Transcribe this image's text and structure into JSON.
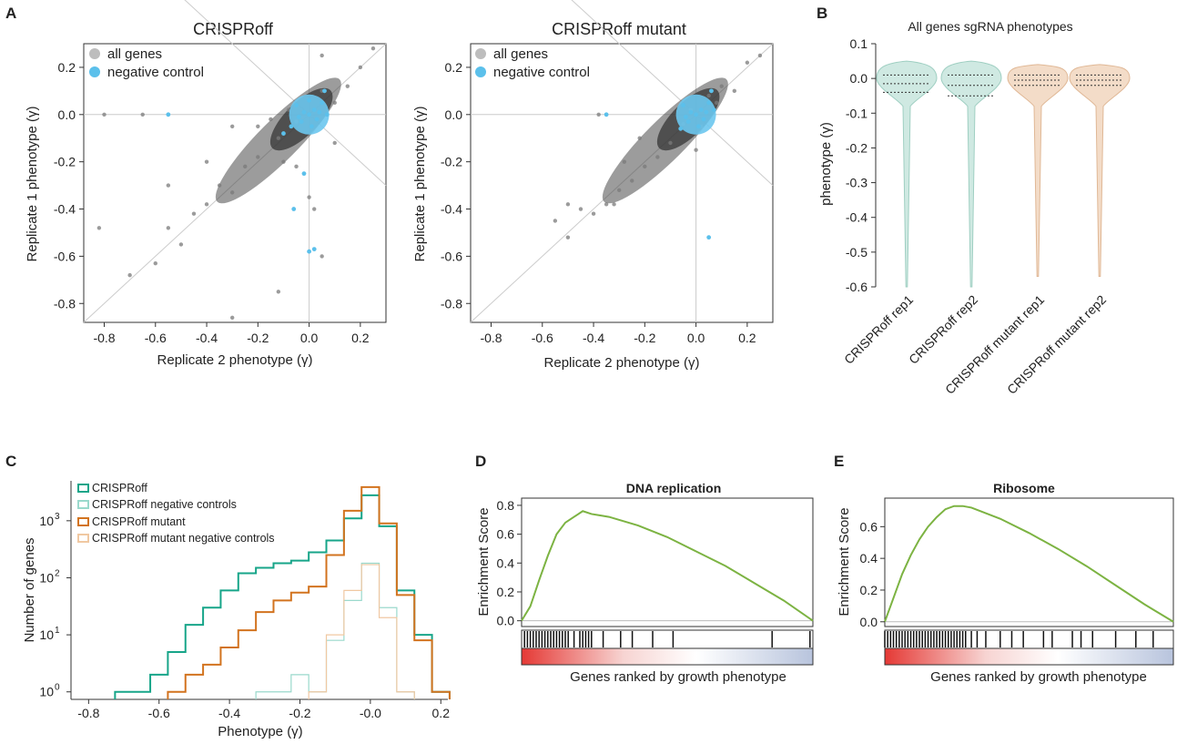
{
  "panels": {
    "A": "A",
    "B": "B",
    "C": "C",
    "D": "D",
    "E": "E"
  },
  "chart_data": [
    {
      "id": "A1",
      "type": "scatter",
      "title": "CRISPRoff",
      "xlabel": "Replicate 2 phenotype (γ)",
      "ylabel": "Replicate 1 phenotype (γ)",
      "xlim": [
        -0.88,
        0.3
      ],
      "ylim": [
        -0.88,
        0.3
      ],
      "xticks": [
        "-0.8",
        "-0.6",
        "-0.4",
        "-0.2",
        "0.0",
        "0.2"
      ],
      "yticks": [
        "0.2",
        "0.0",
        "-0.2",
        "-0.4",
        "-0.6",
        "-0.8"
      ],
      "legend": [
        "all genes",
        "negative control"
      ],
      "legend_position": "top-left",
      "colors": {
        "all_genes": "#3a3a3a",
        "negative_control": "#5bc0eb"
      },
      "series": [
        {
          "name": "all genes",
          "points": [
            [
              -0.05,
              -0.03
            ],
            [
              -0.12,
              -0.1
            ],
            [
              -0.2,
              -0.18
            ],
            [
              -0.25,
              -0.22
            ],
            [
              -0.3,
              -0.33
            ],
            [
              -0.35,
              -0.3
            ],
            [
              -0.4,
              -0.38
            ],
            [
              -0.45,
              -0.42
            ],
            [
              -0.5,
              -0.55
            ],
            [
              -0.55,
              -0.48
            ],
            [
              -0.15,
              -0.02
            ],
            [
              -0.1,
              -0.2
            ],
            [
              -0.08,
              0.02
            ],
            [
              0.05,
              0.1
            ],
            [
              0.1,
              0.05
            ],
            [
              0.15,
              0.12
            ],
            [
              0.2,
              0.2
            ],
            [
              0.25,
              0.28
            ],
            [
              -0.6,
              -0.63
            ],
            [
              -0.7,
              -0.68
            ],
            [
              -0.82,
              -0.48
            ],
            [
              -0.55,
              -0.3
            ],
            [
              -0.3,
              -0.05
            ],
            [
              -0.4,
              -0.2
            ],
            [
              0.02,
              -0.4
            ],
            [
              0.05,
              -0.6
            ],
            [
              -0.12,
              -0.75
            ],
            [
              -0.3,
              -0.86
            ],
            [
              -0.8,
              0.0
            ],
            [
              -0.65,
              0.0
            ],
            [
              0.0,
              -0.35
            ],
            [
              0.05,
              0.25
            ],
            [
              -0.2,
              -0.05
            ],
            [
              -0.05,
              -0.22
            ],
            [
              0.1,
              -0.12
            ]
          ]
        },
        {
          "name": "negative control",
          "points": [
            [
              0.0,
              0.0
            ],
            [
              0.02,
              0.02
            ],
            [
              -0.02,
              0.01
            ],
            [
              0.03,
              -0.02
            ],
            [
              -0.03,
              -0.03
            ],
            [
              0.05,
              0.05
            ],
            [
              -0.05,
              0.04
            ],
            [
              0.01,
              -0.05
            ],
            [
              0.04,
              0.01
            ],
            [
              -0.04,
              -0.01
            ],
            [
              -0.55,
              0.0
            ],
            [
              0.0,
              -0.58
            ],
            [
              0.02,
              -0.57
            ],
            [
              -0.02,
              -0.25
            ],
            [
              -0.06,
              -0.4
            ],
            [
              0.06,
              0.1
            ],
            [
              -0.1,
              -0.08
            ],
            [
              0.07,
              0.0
            ],
            [
              -0.07,
              -0.05
            ],
            [
              0.0,
              0.06
            ]
          ]
        }
      ]
    },
    {
      "id": "A2",
      "type": "scatter",
      "title": "CRISPRoff mutant",
      "xlabel": "Replicate 2 phenotype (γ)",
      "ylabel": "Replicate 1 phenotype (γ)",
      "xlim": [
        -0.88,
        0.3
      ],
      "ylim": [
        -0.88,
        0.3
      ],
      "xticks": [
        "-0.8",
        "-0.6",
        "-0.4",
        "-0.2",
        "0.0",
        "0.2"
      ],
      "yticks": [
        "0.2",
        "0.0",
        "-0.2",
        "-0.4",
        "-0.6",
        "-0.8"
      ],
      "legend": [
        "all genes",
        "negative control"
      ],
      "legend_position": "top-left",
      "series": [
        {
          "name": "all genes",
          "points": [
            [
              -0.05,
              -0.04
            ],
            [
              -0.1,
              -0.12
            ],
            [
              -0.15,
              -0.18
            ],
            [
              -0.2,
              -0.22
            ],
            [
              -0.25,
              -0.28
            ],
            [
              -0.3,
              -0.32
            ],
            [
              -0.35,
              -0.38
            ],
            [
              -0.4,
              -0.42
            ],
            [
              -0.45,
              -0.4
            ],
            [
              -0.5,
              -0.38
            ],
            [
              -0.02,
              0.02
            ],
            [
              0.05,
              0.08
            ],
            [
              0.08,
              0.05
            ],
            [
              0.1,
              0.12
            ],
            [
              0.15,
              0.1
            ],
            [
              0.2,
              0.22
            ],
            [
              -0.32,
              -0.38
            ],
            [
              -0.28,
              -0.2
            ],
            [
              -0.38,
              0.0
            ],
            [
              -0.22,
              -0.1
            ],
            [
              0.0,
              -0.15
            ],
            [
              0.02,
              -0.05
            ],
            [
              0.25,
              0.25
            ],
            [
              -0.55,
              -0.45
            ],
            [
              -0.5,
              -0.52
            ]
          ]
        },
        {
          "name": "negative control",
          "points": [
            [
              0.0,
              0.0
            ],
            [
              0.02,
              0.02
            ],
            [
              -0.02,
              0.01
            ],
            [
              0.03,
              -0.02
            ],
            [
              -0.03,
              -0.03
            ],
            [
              0.05,
              0.05
            ],
            [
              -0.05,
              0.04
            ],
            [
              0.01,
              -0.05
            ],
            [
              0.04,
              0.01
            ],
            [
              -0.04,
              -0.01
            ],
            [
              -0.35,
              0.0
            ],
            [
              0.05,
              -0.52
            ],
            [
              0.06,
              0.1
            ],
            [
              -0.06,
              -0.06
            ],
            [
              0.07,
              0.02
            ]
          ]
        }
      ]
    },
    {
      "id": "B",
      "type": "violin",
      "title": "All genes sgRNA phenotypes",
      "ylabel": "phenotype (γ)",
      "ylim": [
        -0.6,
        0.1
      ],
      "yticks": [
        "0.1",
        "0.0",
        "-0.1",
        "-0.2",
        "-0.3",
        "-0.4",
        "-0.5",
        "-0.6"
      ],
      "categories": [
        "CRISPRoff rep1",
        "CRISPRoff rep2",
        "CRISPRoff mutant rep1",
        "CRISPRoff mutant rep2"
      ],
      "colors": [
        "#cfe9e2",
        "#cfe9e2",
        "#f3dcc8",
        "#f3dcc8"
      ],
      "quartiles": [
        [
          -0.04,
          -0.015,
          0.01
        ],
        [
          -0.05,
          -0.02,
          0.01
        ],
        [
          -0.02,
          -0.005,
          0.01
        ],
        [
          -0.02,
          -0.005,
          0.01
        ]
      ],
      "min": [
        -0.6,
        -0.6,
        -0.57,
        -0.57
      ],
      "max": [
        0.05,
        0.05,
        0.04,
        0.04
      ]
    },
    {
      "id": "C",
      "type": "histogram",
      "xlabel": "Phenotype (γ)",
      "ylabel": "Number of genes",
      "xlim": [
        -0.85,
        0.22
      ],
      "xticks": [
        "-0.8",
        "-0.6",
        "-0.4",
        "-0.2",
        "-0.0",
        "0.2"
      ],
      "yscale": "log",
      "yticks": [
        "10",
        "10",
        "10",
        "10"
      ],
      "ytick_exponents": [
        "0",
        "1",
        "2",
        "3"
      ],
      "legend": [
        "CRISPRoff",
        "CRISPRoff negative controls",
        "CRISPRoff mutant",
        "CRISPRoff mutant negative controls"
      ],
      "legend_position": "top-left",
      "colors": [
        "#17a589",
        "#9ad9cc",
        "#d2731f",
        "#f0c8a2"
      ],
      "series": [
        {
          "name": "CRISPRoff",
          "x": [
            -0.7,
            -0.65,
            -0.6,
            -0.55,
            -0.5,
            -0.45,
            -0.4,
            -0.35,
            -0.3,
            -0.25,
            -0.2,
            -0.15,
            -0.1,
            -0.05,
            0.0,
            0.05,
            0.1,
            0.15,
            0.2
          ],
          "y": [
            1,
            1,
            2,
            5,
            15,
            30,
            60,
            120,
            150,
            180,
            200,
            280,
            450,
            1100,
            2800,
            800,
            60,
            10,
            1
          ]
        },
        {
          "name": "CRISPRoff negative controls",
          "x": [
            -0.3,
            -0.25,
            -0.2,
            -0.15,
            -0.1,
            -0.05,
            0.0,
            0.05,
            0.1
          ],
          "y": [
            1,
            1,
            2,
            1,
            8,
            40,
            180,
            30,
            1
          ]
        },
        {
          "name": "CRISPRoff mutant",
          "x": [
            -0.55,
            -0.5,
            -0.45,
            -0.4,
            -0.35,
            -0.3,
            -0.25,
            -0.2,
            -0.15,
            -0.1,
            -0.05,
            0.0,
            0.05,
            0.1,
            0.15,
            0.2
          ],
          "y": [
            1,
            2,
            3,
            6,
            12,
            25,
            40,
            55,
            70,
            250,
            1500,
            3900,
            900,
            50,
            8,
            1
          ]
        },
        {
          "name": "CRISPRoff mutant negative controls",
          "x": [
            -0.15,
            -0.1,
            -0.05,
            0.0,
            0.05,
            0.1
          ],
          "y": [
            1,
            10,
            60,
            170,
            20,
            1
          ]
        }
      ]
    },
    {
      "id": "D",
      "type": "line",
      "title": "DNA replication",
      "xlabel": "Genes ranked by growth phenotype",
      "ylabel": "Enrichment Score",
      "ylim": [
        -0.04,
        0.85
      ],
      "yticks": [
        "0.0",
        "0.2",
        "0.4",
        "0.6",
        "0.8"
      ],
      "color": "#7cb342",
      "x": [
        0,
        3,
        6,
        9,
        12,
        15,
        18,
        21,
        24,
        27,
        30,
        40,
        50,
        60,
        70,
        80,
        90,
        100
      ],
      "y": [
        0.0,
        0.1,
        0.28,
        0.45,
        0.6,
        0.68,
        0.72,
        0.76,
        0.74,
        0.73,
        0.72,
        0.66,
        0.58,
        0.48,
        0.38,
        0.26,
        0.14,
        0.0
      ],
      "hits": [
        1,
        2,
        3,
        4,
        5,
        6,
        7,
        8,
        9,
        10,
        11,
        12,
        13,
        14,
        15,
        16,
        18,
        20,
        21,
        22,
        23,
        24,
        28,
        34,
        38,
        45,
        52,
        86,
        99
      ]
    },
    {
      "id": "E",
      "type": "line",
      "title": "Ribosome",
      "xlabel": "Genes ranked by growth phenotype",
      "ylabel": "Enrichment Score",
      "ylim": [
        -0.03,
        0.78
      ],
      "yticks": [
        "0.0",
        "0.2",
        "0.4",
        "0.6"
      ],
      "color": "#7cb342",
      "x": [
        0,
        3,
        6,
        9,
        12,
        15,
        18,
        21,
        24,
        27,
        30,
        40,
        50,
        60,
        70,
        80,
        90,
        100
      ],
      "y": [
        0.0,
        0.15,
        0.3,
        0.42,
        0.52,
        0.6,
        0.66,
        0.71,
        0.73,
        0.73,
        0.72,
        0.65,
        0.56,
        0.46,
        0.35,
        0.23,
        0.11,
        0.0
      ],
      "hits": [
        0,
        1,
        2,
        3,
        4,
        5,
        6,
        7,
        8,
        9,
        10,
        11,
        12,
        13,
        14,
        15,
        16,
        17,
        18,
        19,
        20,
        21,
        22,
        23,
        24,
        25,
        26,
        27,
        28,
        30,
        32,
        35,
        40,
        44,
        48,
        55,
        58,
        65,
        68,
        72,
        80,
        87,
        93
      ]
    }
  ]
}
